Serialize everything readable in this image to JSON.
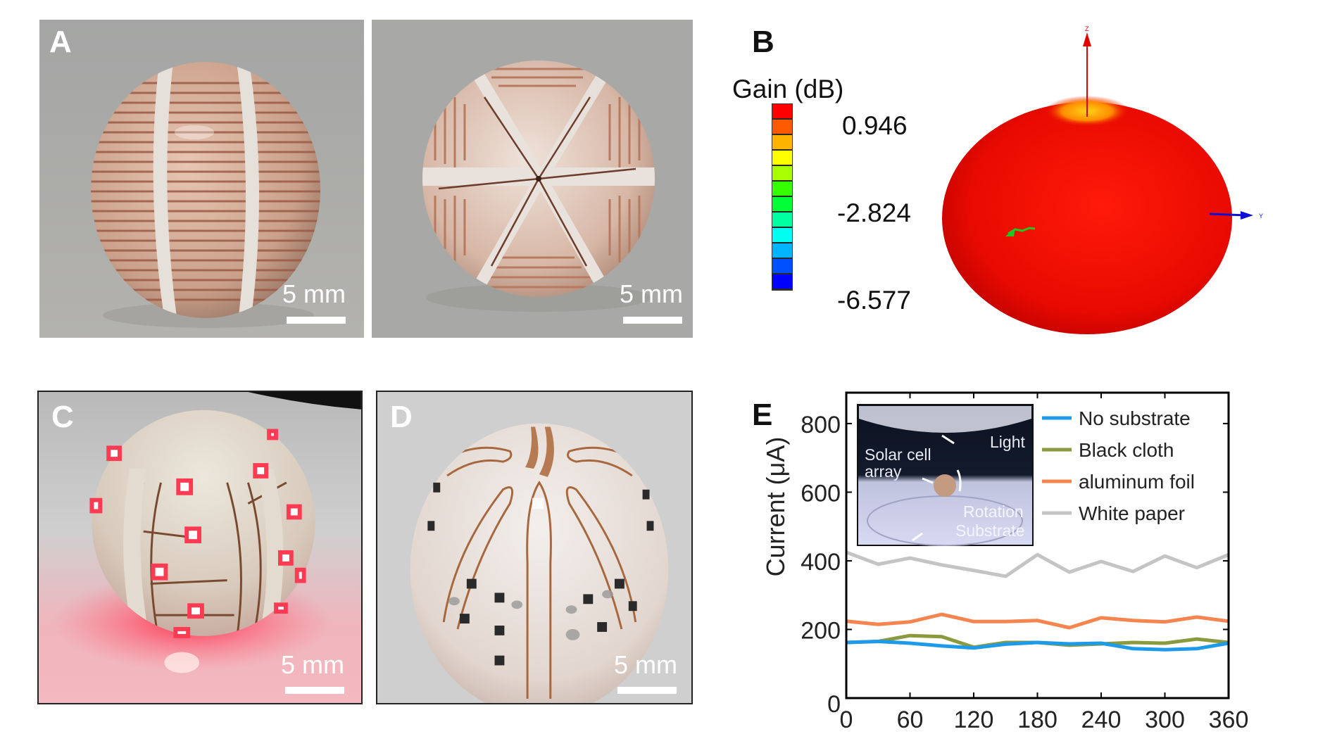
{
  "panels": {
    "a": {
      "letter": "A",
      "scale_left": "5 mm",
      "scale_right": "5 mm"
    },
    "b": {
      "letter": "B",
      "colorbar_title": "Gain (dB)",
      "colorbar_ticks": [
        "0.946",
        "-2.824",
        "-6.577"
      ],
      "colorbar_colors": [
        "#ff0000",
        "#ff5a00",
        "#ffb400",
        "#ffff00",
        "#a8ff00",
        "#36ff00",
        "#00ff36",
        "#00ffa0",
        "#00fff0",
        "#00b4ff",
        "#0050ff",
        "#0000ff"
      ],
      "axis_z": "Z",
      "axis_y": "Y"
    },
    "c": {
      "letter": "C",
      "scale": "5 mm"
    },
    "d": {
      "letter": "D",
      "scale": "5 mm"
    },
    "e": {
      "letter": "E",
      "inset_labels": {
        "light": "Light",
        "solar_1": "Solar cell",
        "solar_2": "array",
        "rotation": "Rotation",
        "substrate": "Substrate"
      }
    }
  },
  "chart_data": {
    "type": "line",
    "title": "",
    "xlabel": "",
    "ylabel": "Current  (μA)",
    "xlim": [
      0,
      360
    ],
    "ylim": [
      0,
      890
    ],
    "xticks": [
      "0",
      "60",
      "120",
      "180",
      "240",
      "300",
      "360"
    ],
    "yticks": [
      "0",
      "200",
      "400",
      "600",
      "800"
    ],
    "legend_position": "top-right",
    "x": [
      0,
      30,
      60,
      90,
      120,
      150,
      180,
      210,
      240,
      270,
      300,
      330,
      360
    ],
    "series": [
      {
        "name": "No substrate",
        "color": "#1e9be8",
        "values": [
          162,
          165,
          160,
          152,
          146,
          157,
          162,
          158,
          160,
          144,
          141,
          144,
          160
        ]
      },
      {
        "name": "Black cloth",
        "color": "#8a9a3e",
        "values": [
          162,
          165,
          182,
          179,
          148,
          162,
          162,
          154,
          158,
          162,
          160,
          172,
          162
        ]
      },
      {
        "name": "aluminum foil",
        "color": "#f5844e",
        "values": [
          224,
          215,
          222,
          244,
          223,
          223,
          226,
          205,
          234,
          226,
          222,
          236,
          224
        ]
      },
      {
        "name": "White paper",
        "color": "#c4c4c4",
        "values": [
          425,
          390,
          408,
          388,
          372,
          355,
          418,
          367,
          398,
          369,
          414,
          380,
          418
        ]
      }
    ]
  }
}
